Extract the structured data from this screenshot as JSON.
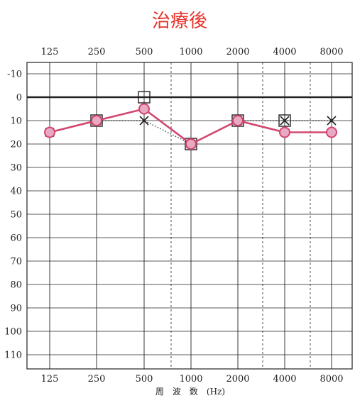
{
  "chart_data": {
    "type": "line",
    "title": "治療後",
    "xlabel": "周　波　数　(Hz)",
    "ylabel": "",
    "x_categories": [
      "125",
      "250",
      "500",
      "1000",
      "2000",
      "4000",
      "8000"
    ],
    "y_ticks": [
      "-10",
      "0",
      "10",
      "20",
      "30",
      "40",
      "50",
      "60",
      "70",
      "80",
      "90",
      "100",
      "110"
    ],
    "ylim": [
      -10,
      110
    ],
    "y_inverted": true,
    "grid": true,
    "series": [
      {
        "marker": "circle",
        "line_style": "solid",
        "color": "#d2466e",
        "values": [
          15,
          10,
          5,
          20,
          10,
          15,
          15
        ]
      },
      {
        "marker": "x",
        "line_style": "dotted",
        "color": "#222222",
        "values": [
          15,
          10,
          10,
          20,
          10,
          10,
          10
        ]
      },
      {
        "marker": "square-bracket",
        "line_style": "none",
        "color": "#222222",
        "values": [
          null,
          10,
          0,
          20,
          10,
          10,
          null
        ]
      }
    ]
  }
}
